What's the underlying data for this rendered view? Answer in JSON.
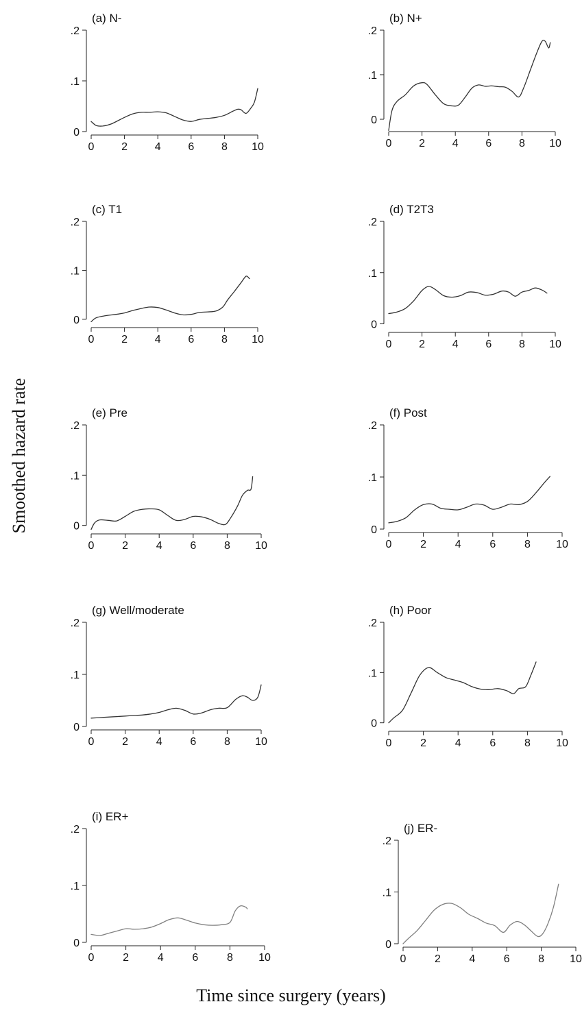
{
  "figure": {
    "ylabel": "Smoothed hazard rate",
    "xlabel": "Time since surgery (years)"
  },
  "chart_data": [
    {
      "type": "line",
      "title": "(a) N-",
      "xlim": [
        0,
        10
      ],
      "ylim": [
        0,
        0.2
      ],
      "x_ticks": [
        0,
        2,
        4,
        6,
        8,
        10
      ],
      "x_tick_labels": [
        "0",
        "2",
        "4",
        "6",
        "8",
        "10"
      ],
      "y_ticks": [
        0,
        0.1,
        0.2
      ],
      "y_tick_labels": [
        "0",
        ".1",
        ".2"
      ],
      "line_color": "#333333",
      "x": [
        0,
        0.3,
        0.7,
        1.2,
        2,
        2.5,
        3,
        3.5,
        4,
        4.5,
        5,
        5.5,
        6,
        6.5,
        7,
        7.5,
        8,
        8.5,
        8.8,
        9,
        9.3,
        9.6,
        9.8,
        10
      ],
      "y": [
        0.02,
        0.012,
        0.011,
        0.015,
        0.028,
        0.035,
        0.038,
        0.038,
        0.039,
        0.037,
        0.03,
        0.023,
        0.02,
        0.024,
        0.026,
        0.028,
        0.032,
        0.04,
        0.044,
        0.043,
        0.036,
        0.047,
        0.058,
        0.085
      ]
    },
    {
      "type": "line",
      "title": "(b) N+",
      "xlim": [
        0,
        10
      ],
      "ylim": [
        -0.02,
        0.2
      ],
      "x_ticks": [
        0,
        2,
        4,
        6,
        8,
        10
      ],
      "x_tick_labels": [
        "0",
        "2",
        "4",
        "6",
        "8",
        "10"
      ],
      "y_ticks": [
        0,
        0.1,
        0.2
      ],
      "y_tick_labels": [
        "0",
        ".1",
        ".2"
      ],
      "line_color": "#333333",
      "x": [
        0,
        0.2,
        0.5,
        1,
        1.5,
        2,
        2.3,
        2.8,
        3.3,
        3.8,
        4.2,
        4.6,
        5,
        5.4,
        5.8,
        6.2,
        6.6,
        7,
        7.4,
        7.8,
        8.1,
        8.5,
        8.9,
        9.2,
        9.4,
        9.6,
        9.7
      ],
      "y": [
        -0.025,
        0.02,
        0.04,
        0.055,
        0.075,
        0.082,
        0.078,
        0.055,
        0.035,
        0.03,
        0.032,
        0.05,
        0.07,
        0.077,
        0.074,
        0.075,
        0.073,
        0.072,
        0.063,
        0.05,
        0.07,
        0.11,
        0.15,
        0.175,
        0.175,
        0.16,
        0.172
      ]
    },
    {
      "type": "line",
      "title": "(c) T1",
      "xlim": [
        0,
        10
      ],
      "ylim": [
        -0.01,
        0.2
      ],
      "x_ticks": [
        0,
        2,
        4,
        6,
        8,
        10
      ],
      "x_tick_labels": [
        "0",
        "2",
        "4",
        "6",
        "8",
        "10"
      ],
      "y_ticks": [
        0,
        0.1,
        0.2
      ],
      "y_tick_labels": [
        "0",
        ".1",
        ".2"
      ],
      "line_color": "#333333",
      "x": [
        0,
        0.3,
        0.8,
        1.5,
        2,
        2.5,
        3,
        3.5,
        4,
        4.5,
        5,
        5.5,
        6,
        6.5,
        7,
        7.5,
        7.9,
        8.2,
        8.6,
        9,
        9.3,
        9.5
      ],
      "y": [
        -0.005,
        0.003,
        0.007,
        0.01,
        0.013,
        0.018,
        0.022,
        0.025,
        0.024,
        0.019,
        0.013,
        0.009,
        0.01,
        0.014,
        0.015,
        0.017,
        0.025,
        0.04,
        0.057,
        0.075,
        0.088,
        0.083
      ]
    },
    {
      "type": "line",
      "title": "(d) T2T3",
      "xlim": [
        0,
        10
      ],
      "ylim": [
        -0.01,
        0.2
      ],
      "x_ticks": [
        0,
        2,
        4,
        6,
        8,
        10
      ],
      "x_tick_labels": [
        "0",
        "2",
        "4",
        "6",
        "8",
        "10"
      ],
      "y_ticks": [
        0,
        0.1,
        0.2
      ],
      "y_tick_labels": [
        "0",
        ".1",
        ".2"
      ],
      "line_color": "#333333",
      "x": [
        0,
        0.5,
        1,
        1.5,
        2,
        2.4,
        2.8,
        3.3,
        3.8,
        4.3,
        4.8,
        5.3,
        5.8,
        6.3,
        6.8,
        7.2,
        7.6,
        8,
        8.4,
        8.8,
        9.2,
        9.5
      ],
      "y": [
        0.02,
        0.023,
        0.03,
        0.045,
        0.065,
        0.073,
        0.067,
        0.055,
        0.052,
        0.055,
        0.062,
        0.061,
        0.056,
        0.058,
        0.064,
        0.062,
        0.054,
        0.062,
        0.065,
        0.07,
        0.066,
        0.06
      ]
    },
    {
      "type": "line",
      "title": "(e) Pre",
      "xlim": [
        0,
        10
      ],
      "ylim": [
        -0.01,
        0.2
      ],
      "x_ticks": [
        0,
        2,
        4,
        6,
        8,
        10
      ],
      "x_tick_labels": [
        "0",
        "2",
        "4",
        "6",
        "8",
        "10"
      ],
      "y_ticks": [
        0,
        0.1,
        0.2
      ],
      "y_tick_labels": [
        "0",
        ".1",
        ".2"
      ],
      "line_color": "#333333",
      "x": [
        0,
        0.2,
        0.5,
        1,
        1.5,
        2,
        2.5,
        3,
        3.5,
        4,
        4.5,
        5,
        5.5,
        6,
        6.5,
        7,
        7.5,
        7.9,
        8.2,
        8.6,
        8.9,
        9.2,
        9.4,
        9.5
      ],
      "y": [
        -0.008,
        0.005,
        0.011,
        0.01,
        0.009,
        0.018,
        0.028,
        0.032,
        0.033,
        0.031,
        0.02,
        0.01,
        0.012,
        0.018,
        0.017,
        0.012,
        0.004,
        0.002,
        0.015,
        0.038,
        0.06,
        0.07,
        0.072,
        0.097
      ]
    },
    {
      "type": "line",
      "title": "(f) Post",
      "xlim": [
        0,
        10
      ],
      "ylim": [
        0,
        0.2
      ],
      "x_ticks": [
        0,
        2,
        4,
        6,
        8,
        10
      ],
      "x_tick_labels": [
        "0",
        "2",
        "4",
        "6",
        "8",
        "10"
      ],
      "y_ticks": [
        0,
        0.1,
        0.2
      ],
      "y_tick_labels": [
        "0",
        ".1",
        ".2"
      ],
      "line_color": "#333333",
      "x": [
        0,
        0.5,
        1,
        1.5,
        2,
        2.5,
        3,
        3.5,
        4,
        4.5,
        5,
        5.5,
        6,
        6.5,
        7,
        7.5,
        8,
        8.5,
        9,
        9.3
      ],
      "y": [
        0.012,
        0.015,
        0.022,
        0.037,
        0.047,
        0.048,
        0.04,
        0.038,
        0.037,
        0.042,
        0.048,
        0.046,
        0.038,
        0.042,
        0.048,
        0.047,
        0.053,
        0.07,
        0.09,
        0.101
      ]
    },
    {
      "type": "line",
      "title": "(g) Well/moderate",
      "xlim": [
        0,
        10
      ],
      "ylim": [
        0,
        0.2
      ],
      "x_ticks": [
        0,
        2,
        4,
        6,
        8,
        10
      ],
      "x_tick_labels": [
        "0",
        "2",
        "4",
        "6",
        "8",
        "10"
      ],
      "y_ticks": [
        0,
        0.1,
        0.2
      ],
      "y_tick_labels": [
        "0",
        ".1",
        ".2"
      ],
      "line_color": "#333333",
      "x": [
        0,
        0.5,
        1,
        1.5,
        2,
        2.5,
        3,
        3.5,
        4,
        4.5,
        5,
        5.5,
        6,
        6.5,
        7,
        7.5,
        8,
        8.5,
        8.9,
        9.2,
        9.5,
        9.8,
        10
      ],
      "y": [
        0.016,
        0.017,
        0.018,
        0.019,
        0.02,
        0.021,
        0.022,
        0.024,
        0.027,
        0.032,
        0.035,
        0.031,
        0.024,
        0.026,
        0.032,
        0.035,
        0.036,
        0.052,
        0.059,
        0.056,
        0.05,
        0.056,
        0.08
      ]
    },
    {
      "type": "line",
      "title": "(h) Poor",
      "xlim": [
        0,
        10
      ],
      "ylim": [
        -0.01,
        0.2
      ],
      "x_ticks": [
        0,
        2,
        4,
        6,
        8,
        10
      ],
      "x_tick_labels": [
        "0",
        "2",
        "4",
        "6",
        "8",
        "10"
      ],
      "y_ticks": [
        0,
        0.1,
        0.2
      ],
      "y_tick_labels": [
        "0",
        ".1",
        ".2"
      ],
      "line_color": "#333333",
      "x": [
        0,
        0.3,
        0.8,
        1.3,
        1.8,
        2.3,
        2.8,
        3.3,
        3.8,
        4.3,
        4.8,
        5.3,
        5.8,
        6.3,
        6.8,
        7.2,
        7.5,
        7.9,
        8.2,
        8.5
      ],
      "y": [
        0,
        0.01,
        0.025,
        0.06,
        0.095,
        0.11,
        0.1,
        0.09,
        0.085,
        0.08,
        0.072,
        0.067,
        0.066,
        0.068,
        0.064,
        0.058,
        0.068,
        0.072,
        0.095,
        0.121
      ]
    },
    {
      "type": "line",
      "title": "(i) ER+",
      "xlim": [
        0,
        10
      ],
      "ylim": [
        0,
        0.2
      ],
      "x_ticks": [
        0,
        2,
        4,
        6,
        8,
        10
      ],
      "x_tick_labels": [
        "0",
        "2",
        "4",
        "6",
        "8",
        "10"
      ],
      "y_ticks": [
        0,
        0.1,
        0.2
      ],
      "y_tick_labels": [
        "0",
        ".1",
        ".2"
      ],
      "line_color": "#808080",
      "x": [
        0,
        0.5,
        1,
        1.5,
        2,
        2.5,
        3,
        3.5,
        4,
        4.5,
        5,
        5.5,
        6,
        6.5,
        7,
        7.5,
        8,
        8.3,
        8.6,
        8.9,
        9
      ],
      "y": [
        0.014,
        0.012,
        0.016,
        0.02,
        0.024,
        0.023,
        0.024,
        0.027,
        0.033,
        0.04,
        0.043,
        0.039,
        0.034,
        0.031,
        0.03,
        0.031,
        0.035,
        0.055,
        0.064,
        0.062,
        0.059
      ]
    },
    {
      "type": "line",
      "title": "(j) ER-",
      "xlim": [
        0,
        10
      ],
      "ylim": [
        0,
        0.2
      ],
      "x_ticks": [
        0,
        2,
        4,
        6,
        8,
        10
      ],
      "x_tick_labels": [
        "0",
        "2",
        "4",
        "6",
        "8",
        "10"
      ],
      "y_ticks": [
        0,
        0.1,
        0.2
      ],
      "y_tick_labels": [
        "0",
        ".1",
        ".2"
      ],
      "line_color": "#808080",
      "x": [
        0,
        0.3,
        0.8,
        1.3,
        1.8,
        2.3,
        2.8,
        3.3,
        3.8,
        4.3,
        4.8,
        5.3,
        5.8,
        6.2,
        6.6,
        7,
        7.4,
        7.8,
        8.1,
        8.4,
        8.7,
        9
      ],
      "y": [
        0,
        0.01,
        0.025,
        0.045,
        0.065,
        0.076,
        0.078,
        0.07,
        0.057,
        0.049,
        0.04,
        0.035,
        0.022,
        0.036,
        0.043,
        0.037,
        0.025,
        0.014,
        0.02,
        0.04,
        0.07,
        0.115
      ]
    }
  ]
}
